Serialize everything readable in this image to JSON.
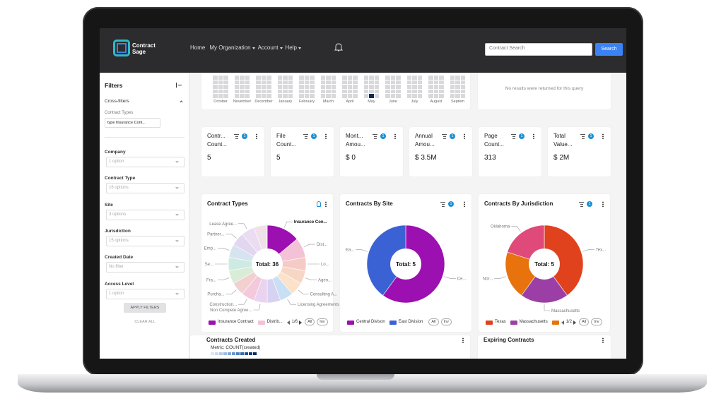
{
  "header": {
    "logo": [
      "Contract",
      "Sage"
    ],
    "nav": [
      "Home",
      "My Organization",
      "Account",
      "Help"
    ],
    "search_placeholder": "Contract Search",
    "search_button": "Search"
  },
  "sidebar": {
    "title": "Filters",
    "cross_filters": "Cross-filters",
    "cross_filter_label": "Contract Types",
    "chip": "type Insurance Cont...",
    "filters": [
      {
        "label": "Company",
        "value": "1 option"
      },
      {
        "label": "Contract Type",
        "value": "16 options"
      },
      {
        "label": "Site",
        "value": "3 options"
      },
      {
        "label": "Jurisdiction",
        "value": "15 options"
      },
      {
        "label": "Created Date",
        "value": "No filter"
      },
      {
        "label": "Access Level",
        "value": "1 option"
      }
    ],
    "apply": "APPLY FILTERS",
    "clear": "CLEAR ALL"
  },
  "heatmap": {
    "months": [
      "October",
      "November",
      "December",
      "January",
      "February",
      "March",
      "April",
      "May",
      "June",
      "July",
      "August",
      "Septem"
    ]
  },
  "empty_message": "No results were returned for this query",
  "kpis": [
    {
      "label": [
        "Contr...",
        "Count..."
      ],
      "filter_count": "1",
      "value": "5"
    },
    {
      "label": [
        "File",
        "Count..."
      ],
      "filter_count": "1",
      "value": "5"
    },
    {
      "label": [
        "Mont...",
        "Amou..."
      ],
      "filter_count": "1",
      "value": "$ 0"
    },
    {
      "label": [
        "Annual",
        "Amou..."
      ],
      "filter_count": "1",
      "value": "$ 3.5M"
    },
    {
      "label": [
        "Page",
        "Count..."
      ],
      "filter_count": "1",
      "value": "313"
    },
    {
      "label": [
        "Total",
        "Value..."
      ],
      "filter_count": "1",
      "value": "$ 2M"
    }
  ],
  "charts": [
    {
      "type": "pie",
      "title": "Contract Types",
      "center_label": "Total: 36",
      "categories": [
        "Insurance Con...",
        "Dist...",
        "Lo...",
        "Agen...",
        "Consulting A...",
        "Licensing Agreements",
        null,
        "Non Compete Agree...",
        "Construction...",
        "Purcha...",
        "Fra...",
        "Se...",
        "Emp...",
        "Partner...",
        "Lease Agree...",
        null
      ],
      "values": [
        5,
        3,
        2,
        2,
        2,
        2,
        2,
        2,
        2,
        2,
        2,
        2,
        2,
        2,
        2,
        2
      ],
      "colors": [
        "#9c0fb0",
        "#f3c2d6",
        "#f6cbc6",
        "#f8d6c6",
        "#fbe2c8",
        "#c9dff4",
        "#d7d2f2",
        "#e9d3ef",
        "#f4c9dc",
        "#f2d0d0",
        "#d8ecd8",
        "#cdebe3",
        "#d6e4f0",
        "#e2d6f1",
        "#ebdcf2",
        "#f0e0ea"
      ],
      "filter_count": "",
      "legend": [
        {
          "label": "Insurance Contract",
          "color": "#9c0fb0"
        },
        {
          "label": "Distrib...",
          "color": "#f3c2d6"
        }
      ],
      "pager": "1/6",
      "buttons": [
        "All",
        "Inv"
      ]
    },
    {
      "type": "pie",
      "title": "Contracts By Site",
      "center_label": "Total: 5",
      "categories": [
        "Ce...",
        "Ea..."
      ],
      "values": [
        3,
        2
      ],
      "colors": [
        "#9c0fb0",
        "#3b62d4"
      ],
      "filter_count": "1",
      "legend": [
        {
          "label": "Central Divison",
          "color": "#9c0fb0"
        },
        {
          "label": "East Division",
          "color": "#3b62d4"
        }
      ],
      "buttons": [
        "All",
        "Inv"
      ]
    },
    {
      "type": "pie",
      "title": "Contracts By Jurisdiction",
      "center_label": "Total: 5",
      "categories": [
        "Tex...",
        "Massachusetts",
        "Nor...",
        "Oklahoma"
      ],
      "values": [
        2,
        1,
        1,
        1
      ],
      "colors": [
        "#e0421d",
        "#9b3fa6",
        "#e8720c",
        "#e04a7a"
      ],
      "filter_count": "1",
      "legend": [
        {
          "label": "Texas",
          "color": "#e0421d"
        },
        {
          "label": "Massachusetts",
          "color": "#9b3fa6"
        },
        {
          "color": "#e8720c"
        }
      ],
      "pager": "1/2",
      "buttons": [
        "All",
        "Inv"
      ]
    }
  ],
  "bottom": {
    "contracts_created": {
      "title": "Contracts Created",
      "metric": "Metric: COUNT(created)"
    },
    "expiring": {
      "title": "Expiring Contracts"
    }
  }
}
